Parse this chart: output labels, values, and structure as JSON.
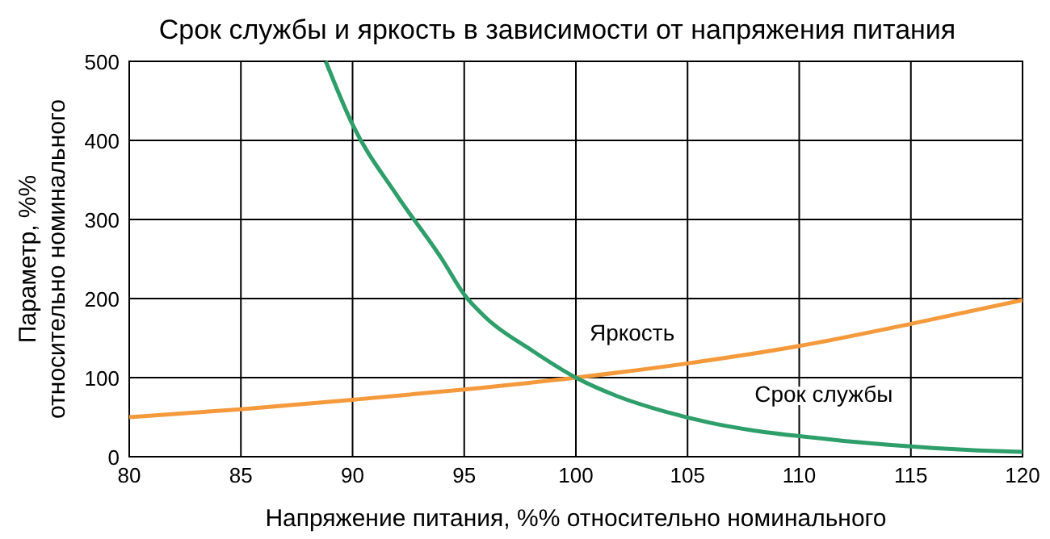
{
  "chart_data": {
    "type": "line",
    "title": "Срок службы и яркость в зависимости от напряжения питания",
    "xlabel": "Напряжение питания, %% относительно номинального",
    "ylabel": "Параметр, %%\nотносительно номинального",
    "xlim": [
      80,
      120
    ],
    "ylim": [
      0,
      500
    ],
    "xticks": [
      80,
      85,
      90,
      95,
      100,
      105,
      110,
      115,
      120
    ],
    "yticks": [
      0,
      100,
      200,
      300,
      400,
      500
    ],
    "grid": true,
    "line_style": "solid",
    "marker": "none",
    "series": [
      {
        "name": "Яркость",
        "color": "#f59a3c",
        "x": [
          80,
          85,
          90,
          95,
          100,
          105,
          110,
          115,
          120
        ],
        "values": [
          50,
          60,
          72,
          85,
          100,
          118,
          140,
          168,
          198
        ]
      },
      {
        "name": "Срок службы",
        "color": "#2e9e6b",
        "x": [
          88.8,
          90,
          92,
          94,
          95,
          96,
          98,
          100,
          102,
          104,
          106,
          108,
          110,
          112,
          114,
          116,
          118,
          120
        ],
        "values": [
          500,
          420,
          330,
          250,
          205,
          175,
          135,
          100,
          75,
          57,
          43,
          33,
          26,
          20,
          15,
          11,
          8,
          6
        ]
      }
    ]
  }
}
